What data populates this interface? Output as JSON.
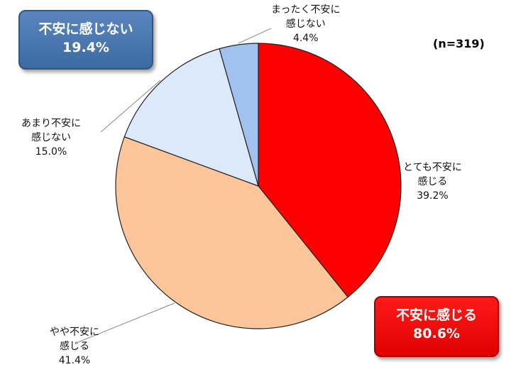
{
  "n_label": "(n=319)",
  "summary": {
    "not_anxious": {
      "label": "不安に感じない",
      "value": "19.4%"
    },
    "anxious": {
      "label": "不安に感じる",
      "value": "80.6%"
    }
  },
  "slice_labels": [
    {
      "line1": "とても不安に",
      "line2": "感じる",
      "pct": "39.2%"
    },
    {
      "line1": "やや不安に",
      "line2": "感じる",
      "pct": "41.4%"
    },
    {
      "line1": "あまり不安に",
      "line2": "感じない",
      "pct": "15.0%"
    },
    {
      "line1": "まったく不安に",
      "line2": "感じない",
      "pct": "4.4%"
    }
  ],
  "chart_data": {
    "type": "pie",
    "categories": [
      "とても不安に感じる",
      "やや不安に感じる",
      "あまり不安に感じない",
      "まったく不安に感じない"
    ],
    "values": [
      39.2,
      41.4,
      15.0,
      4.4
    ],
    "colors": [
      "#ff0000",
      "#fcc69a",
      "#dce9fb",
      "#9fc2ee"
    ],
    "start": "12 o'clock, clockwise",
    "legend": "none"
  }
}
